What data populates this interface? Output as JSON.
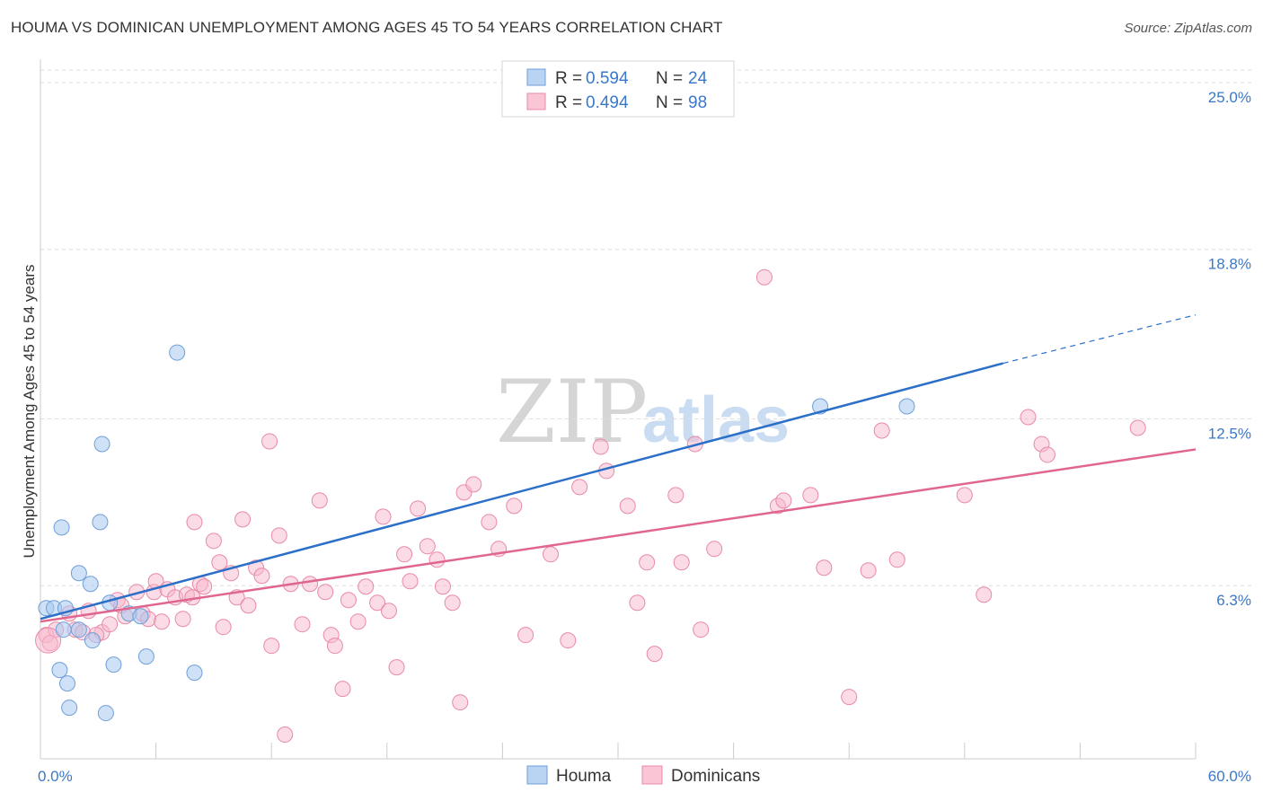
{
  "title": "HOUMA VS DOMINICAN UNEMPLOYMENT AMONG AGES 45 TO 54 YEARS CORRELATION CHART",
  "source": "Source: ZipAtlas.com",
  "watermark": {
    "zip": "ZIP",
    "atlas": "atlas"
  },
  "colors": {
    "houma_fill": "#a8c8f0",
    "houma_stroke": "#6f9fd8",
    "houma_line": "#2b6fc9",
    "dom_fill": "#f7b8cb",
    "dom_stroke": "#e88aa8",
    "dom_line": "#e0668f",
    "accent": "#3b78c9"
  },
  "chart_data": {
    "type": "scatter",
    "xlabel": "",
    "ylabel": "Unemployment Among Ages 45 to 54 years",
    "xlim": [
      0,
      60
    ],
    "ylim": [
      0,
      25.6
    ],
    "x_tick_labels": [
      {
        "value": 0,
        "label": "0.0%"
      },
      {
        "value": 60,
        "label": "60.0%"
      }
    ],
    "y_tick_labels": [
      {
        "value": 6.3,
        "label": "6.3%"
      },
      {
        "value": 12.5,
        "label": "12.5%"
      },
      {
        "value": 18.8,
        "label": "18.8%"
      },
      {
        "value": 25.0,
        "label": "25.0%"
      }
    ],
    "legend": {
      "entries": [
        {
          "r_label": "R =",
          "r_value": "0.594",
          "n_label": "N =",
          "n_value": "24"
        },
        {
          "r_label": "R =",
          "r_value": "0.494",
          "n_label": "N =",
          "n_value": "98"
        }
      ]
    },
    "series": [
      {
        "name": "Houma",
        "trend": {
          "x0": 0,
          "y0": 5.2,
          "x1": 50,
          "y1": 14.7,
          "dash_to_x": 60,
          "dash_to_y": 16.5
        },
        "points": [
          [
            0.3,
            5.6
          ],
          [
            0.7,
            5.6
          ],
          [
            1.0,
            3.3
          ],
          [
            1.2,
            4.8
          ],
          [
            1.3,
            5.6
          ],
          [
            1.1,
            8.6
          ],
          [
            1.4,
            2.8
          ],
          [
            1.5,
            1.9
          ],
          [
            2.0,
            6.9
          ],
          [
            2.0,
            4.8
          ],
          [
            2.6,
            6.5
          ],
          [
            2.7,
            4.4
          ],
          [
            3.1,
            8.8
          ],
          [
            3.2,
            11.7
          ],
          [
            3.4,
            1.7
          ],
          [
            3.6,
            5.8
          ],
          [
            3.8,
            3.5
          ],
          [
            4.6,
            5.4
          ],
          [
            5.2,
            5.3
          ],
          [
            5.5,
            3.8
          ],
          [
            7.1,
            15.1
          ],
          [
            8.0,
            3.2
          ],
          [
            40.5,
            13.1
          ],
          [
            45.0,
            13.1
          ]
        ]
      },
      {
        "name": "Dominicans",
        "trend": {
          "x0": 0,
          "y0": 5.1,
          "x1": 60,
          "y1": 11.5
        },
        "points": [
          [
            0.3,
            4.6
          ],
          [
            0.8,
            4.8
          ],
          [
            1.8,
            4.8
          ],
          [
            2.2,
            4.7
          ],
          [
            2.5,
            5.5
          ],
          [
            3.2,
            4.7
          ],
          [
            3.6,
            5.0
          ],
          [
            4.0,
            5.9
          ],
          [
            4.2,
            5.7
          ],
          [
            4.4,
            5.3
          ],
          [
            5.0,
            6.2
          ],
          [
            5.3,
            5.4
          ],
          [
            5.6,
            5.2
          ],
          [
            5.9,
            6.2
          ],
          [
            6.0,
            6.6
          ],
          [
            6.3,
            5.1
          ],
          [
            6.6,
            6.3
          ],
          [
            7.0,
            6.0
          ],
          [
            7.4,
            5.2
          ],
          [
            7.6,
            6.1
          ],
          [
            7.9,
            6.0
          ],
          [
            8.0,
            8.8
          ],
          [
            8.3,
            6.5
          ],
          [
            8.5,
            6.4
          ],
          [
            9.0,
            8.1
          ],
          [
            9.3,
            7.3
          ],
          [
            9.5,
            4.9
          ],
          [
            9.9,
            6.9
          ],
          [
            10.2,
            6.0
          ],
          [
            10.5,
            8.9
          ],
          [
            10.8,
            5.7
          ],
          [
            11.2,
            7.1
          ],
          [
            11.5,
            6.8
          ],
          [
            11.9,
            11.8
          ],
          [
            12.4,
            8.3
          ],
          [
            12.7,
            0.9
          ],
          [
            13.0,
            6.5
          ],
          [
            13.6,
            5.0
          ],
          [
            14.0,
            6.5
          ],
          [
            14.5,
            9.6
          ],
          [
            14.8,
            6.2
          ],
          [
            15.1,
            4.6
          ],
          [
            15.3,
            4.2
          ],
          [
            15.7,
            2.6
          ],
          [
            16.0,
            5.9
          ],
          [
            16.5,
            5.1
          ],
          [
            16.9,
            6.4
          ],
          [
            17.5,
            5.8
          ],
          [
            17.8,
            9.0
          ],
          [
            18.1,
            5.5
          ],
          [
            18.5,
            3.4
          ],
          [
            18.9,
            7.6
          ],
          [
            19.2,
            6.6
          ],
          [
            19.6,
            9.3
          ],
          [
            20.1,
            7.9
          ],
          [
            20.6,
            7.4
          ],
          [
            20.9,
            6.4
          ],
          [
            21.4,
            5.8
          ],
          [
            21.8,
            2.1
          ],
          [
            22.0,
            9.9
          ],
          [
            22.5,
            10.2
          ],
          [
            23.3,
            8.8
          ],
          [
            23.8,
            7.8
          ],
          [
            24.6,
            9.4
          ],
          [
            25.2,
            4.6
          ],
          [
            26.5,
            7.6
          ],
          [
            27.4,
            4.4
          ],
          [
            28.0,
            10.1
          ],
          [
            29.1,
            11.6
          ],
          [
            29.4,
            10.7
          ],
          [
            30.5,
            9.4
          ],
          [
            31.0,
            5.8
          ],
          [
            31.5,
            7.3
          ],
          [
            31.9,
            3.9
          ],
          [
            33.0,
            9.8
          ],
          [
            33.3,
            7.3
          ],
          [
            34.0,
            11.7
          ],
          [
            34.3,
            4.8
          ],
          [
            35.0,
            7.8
          ],
          [
            37.6,
            17.9
          ],
          [
            38.3,
            9.4
          ],
          [
            38.6,
            9.6
          ],
          [
            40.0,
            9.8
          ],
          [
            40.7,
            7.1
          ],
          [
            42.0,
            2.3
          ],
          [
            43.0,
            7.0
          ],
          [
            43.7,
            12.2
          ],
          [
            44.5,
            7.4
          ],
          [
            48.0,
            9.8
          ],
          [
            49.0,
            6.1
          ],
          [
            51.3,
            12.7
          ],
          [
            52.0,
            11.7
          ],
          [
            52.3,
            11.3
          ],
          [
            57.0,
            12.3
          ],
          [
            0.5,
            4.3
          ],
          [
            1.5,
            5.4
          ],
          [
            2.9,
            4.6
          ],
          [
            12.0,
            4.2
          ]
        ]
      }
    ],
    "bottom_legend": [
      "Houma",
      "Dominicans"
    ]
  }
}
